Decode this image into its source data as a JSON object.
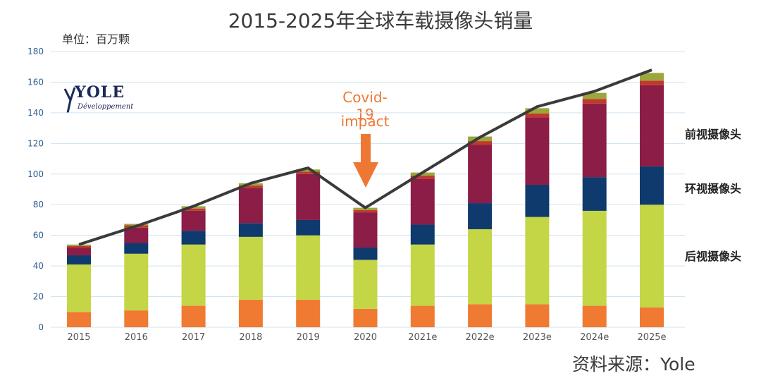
{
  "page": {
    "title": "2015-2025年全球车载摄像头销量",
    "unit": "单位：百万颗",
    "source": "资料来源：Yole"
  },
  "logo": {
    "main": "YOLE",
    "sub": "Développement"
  },
  "annotation": {
    "line1": "Covid-19",
    "line2": "impact",
    "color": "#ee7733"
  },
  "legend": [
    {
      "label": "前视摄像头",
      "key": "front"
    },
    {
      "label": "环视摄像头",
      "key": "surround"
    },
    {
      "label": "后视摄像头",
      "key": "rear"
    }
  ],
  "chart_data": {
    "type": "bar",
    "stacked": true,
    "title": "2015-2025年全球车载摄像头销量",
    "ylabel": "单位：百万颗",
    "ylim": [
      0,
      180
    ],
    "yticks": [
      0,
      20,
      40,
      60,
      80,
      100,
      120,
      140,
      160,
      180
    ],
    "grid": true,
    "categories": [
      "2015",
      "2016",
      "2017",
      "2018",
      "2019",
      "2020",
      "2021e",
      "2022e",
      "2023e",
      "2024e",
      "2025e"
    ],
    "series": [
      {
        "name": "orange segment",
        "color": "#f07a32",
        "values": [
          10,
          11,
          14,
          18,
          18,
          12,
          14,
          15,
          15,
          14,
          13
        ]
      },
      {
        "name": "后视摄像头",
        "color": "#c4d645",
        "values": [
          31,
          37,
          40,
          41,
          42,
          32,
          40,
          49,
          57,
          62,
          67
        ]
      },
      {
        "name": "环视摄像头",
        "color": "#0f3a6e",
        "values": [
          6,
          7,
          9,
          9,
          10,
          8,
          13,
          17,
          21,
          22,
          25
        ]
      },
      {
        "name": "前视摄像头",
        "color": "#8c1d46",
        "values": [
          5,
          10,
          13,
          23,
          30,
          23,
          30,
          38,
          44,
          48,
          53
        ]
      },
      {
        "name": "red segment",
        "color": "#c0392b",
        "values": [
          1,
          1.5,
          1.5,
          1.5,
          1.5,
          1.5,
          2,
          2.5,
          2.5,
          3,
          3
        ]
      },
      {
        "name": "olive segment",
        "color": "#9da63c",
        "values": [
          1,
          1,
          1.5,
          1.5,
          1.5,
          1.5,
          2,
          3,
          3.5,
          4,
          5
        ]
      }
    ],
    "trend_line": {
      "color": "#3a3a3a",
      "values": [
        54,
        66,
        79,
        94,
        104,
        78,
        101,
        124,
        144,
        154,
        168
      ]
    }
  }
}
